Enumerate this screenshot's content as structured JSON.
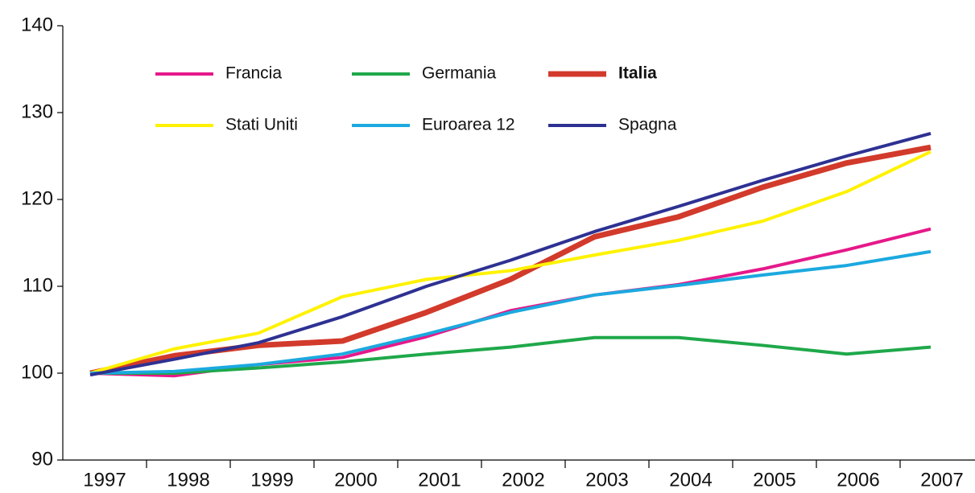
{
  "chart_data": {
    "type": "line",
    "categories": [
      "1997",
      "1998",
      "1999",
      "2000",
      "2001",
      "2002",
      "2003",
      "2004",
      "2005",
      "2006",
      "2007"
    ],
    "ylim": [
      90,
      140
    ],
    "yticks": [
      90,
      100,
      110,
      120,
      130,
      140
    ],
    "series": [
      {
        "name": "Francia",
        "color": "#e5198a",
        "values": [
          100,
          99.7,
          101,
          101.8,
          104.2,
          107.2,
          109,
          110.2,
          112,
          114.2,
          116.6
        ]
      },
      {
        "name": "Germania",
        "color": "#1fa84a",
        "values": [
          100,
          100,
          100.6,
          101.3,
          102.2,
          103,
          104.1,
          104.1,
          103.2,
          102.2,
          103
        ]
      },
      {
        "name": "Italia",
        "color": "#d23a2b",
        "highlight": true,
        "values": [
          100,
          102,
          103.2,
          103.7,
          107,
          110.8,
          115.7,
          118,
          121.4,
          124.2,
          126
        ]
      },
      {
        "name": "Stati Uniti",
        "color": "#fff200",
        "values": [
          100,
          102.8,
          104.6,
          108.8,
          110.8,
          111.8,
          113.6,
          115.3,
          117.5,
          120.9,
          125.5
        ]
      },
      {
        "name": "Euroarea 12",
        "color": "#1ba9df",
        "values": [
          100,
          100.2,
          101,
          102.2,
          104.5,
          107,
          109,
          110.1,
          111.3,
          112.4,
          114
        ]
      },
      {
        "name": "Spagna",
        "color": "#2e3192",
        "values": [
          99.8,
          101.6,
          103.5,
          106.5,
          110,
          113,
          116.3,
          119.2,
          122.2,
          125,
          127.6
        ]
      }
    ]
  }
}
